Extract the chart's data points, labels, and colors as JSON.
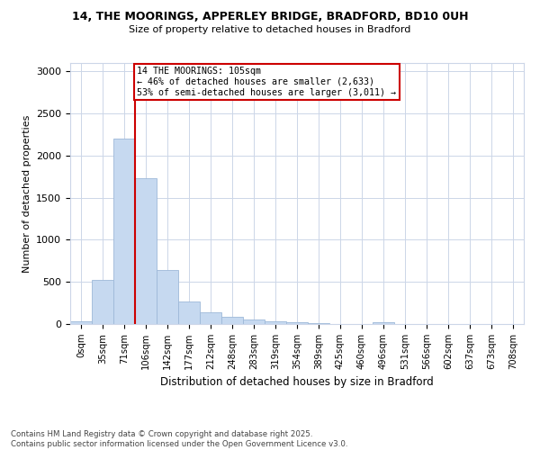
{
  "title": "14, THE MOORINGS, APPERLEY BRIDGE, BRADFORD, BD10 0UH",
  "subtitle": "Size of property relative to detached houses in Bradford",
  "xlabel": "Distribution of detached houses by size in Bradford",
  "ylabel": "Number of detached properties",
  "bar_labels": [
    "0sqm",
    "35sqm",
    "71sqm",
    "106sqm",
    "142sqm",
    "177sqm",
    "212sqm",
    "248sqm",
    "283sqm",
    "319sqm",
    "354sqm",
    "389sqm",
    "425sqm",
    "460sqm",
    "496sqm",
    "531sqm",
    "566sqm",
    "602sqm",
    "637sqm",
    "673sqm",
    "708sqm"
  ],
  "bar_values": [
    30,
    520,
    2200,
    1730,
    640,
    270,
    140,
    85,
    55,
    35,
    25,
    10,
    5,
    0,
    20,
    0,
    0,
    0,
    0,
    0,
    0
  ],
  "bar_color": "#c6d9f0",
  "bar_edge_color": "#9db8d8",
  "marker_bar_index": 3,
  "marker_label": "14 THE MOORINGS: 105sqm",
  "annotation_line1": "← 46% of detached houses are smaller (2,633)",
  "annotation_line2": "53% of semi-detached houses are larger (3,011) →",
  "box_color": "#cc0000",
  "ylim": [
    0,
    3100
  ],
  "yticks": [
    0,
    500,
    1000,
    1500,
    2000,
    2500,
    3000
  ],
  "footer_line1": "Contains HM Land Registry data © Crown copyright and database right 2025.",
  "footer_line2": "Contains public sector information licensed under the Open Government Licence v3.0.",
  "bg_color": "#ffffff",
  "grid_color": "#ccd6e8"
}
